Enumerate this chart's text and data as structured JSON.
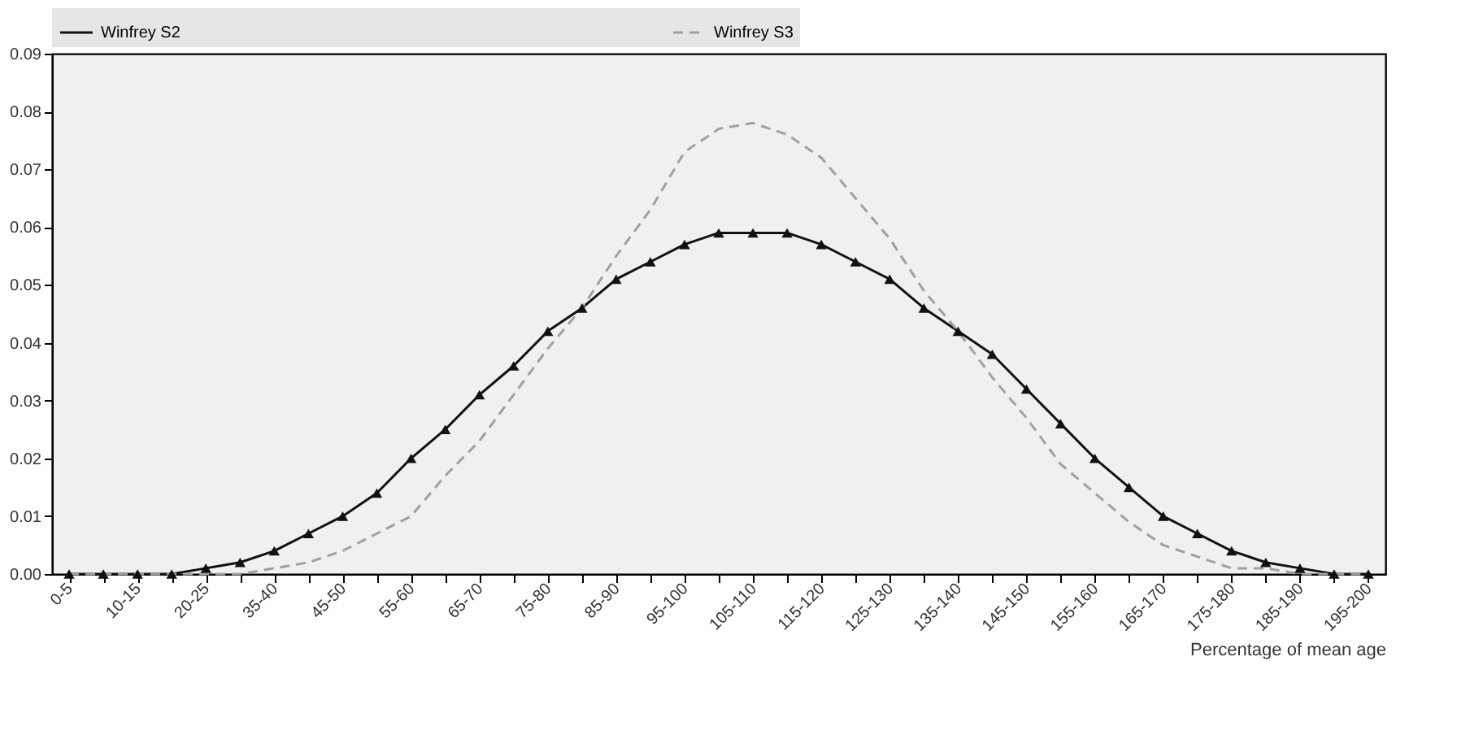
{
  "chart_data": {
    "type": "line",
    "xlabel": "Percentage of mean age",
    "categories": [
      "0-5",
      null,
      "10-15",
      null,
      "20-25",
      null,
      "35-40",
      null,
      "45-50",
      null,
      "55-60",
      null,
      "65-70",
      null,
      "75-80",
      null,
      "85-90",
      null,
      "95-100",
      null,
      "105-110",
      null,
      "115-120",
      null,
      "125-130",
      null,
      "135-140",
      null,
      "145-150",
      null,
      "155-160",
      null,
      "165-170",
      null,
      "175-180",
      null,
      "185-190",
      null,
      "195-200"
    ],
    "series": [
      {
        "name": "Winfrey S2",
        "color": "#111111",
        "marker": "triangle",
        "line_style": "solid",
        "values": [
          0,
          0,
          0,
          0,
          0.001,
          0.002,
          0.004,
          0.007,
          0.01,
          0.014,
          0.02,
          0.025,
          0.031,
          0.036,
          0.042,
          0.046,
          0.051,
          0.054,
          0.057,
          0.059,
          0.059,
          0.059,
          0.057,
          0.054,
          0.051,
          0.046,
          0.042,
          0.038,
          0.032,
          0.026,
          0.02,
          0.015,
          0.01,
          0.007,
          0.004,
          0.002,
          0.001,
          0,
          0
        ]
      },
      {
        "name": "Winfrey S3",
        "color": "#a0a0a0",
        "marker": "none",
        "line_style": "dashed",
        "values": [
          0,
          0,
          0,
          0,
          0,
          0,
          0.001,
          0.002,
          0.004,
          0.007,
          0.01,
          0.017,
          0.023,
          0.031,
          0.039,
          0.046,
          0.055,
          0.063,
          0.073,
          0.077,
          0.078,
          0.076,
          0.072,
          0.065,
          0.058,
          0.049,
          0.042,
          0.034,
          0.027,
          0.019,
          0.014,
          0.009,
          0.005,
          0.003,
          0.001,
          0.001,
          0,
          0,
          0
        ]
      }
    ],
    "ylim": [
      0,
      0.09
    ],
    "yticks": [
      {
        "value": 0,
        "label": "0.00"
      },
      {
        "value": 0.01,
        "label": "0.01"
      },
      {
        "value": 0.02,
        "label": "0.02"
      },
      {
        "value": 0.03,
        "label": "0.03"
      },
      {
        "value": 0.04,
        "label": "0.04"
      },
      {
        "value": 0.05,
        "label": "0.05"
      },
      {
        "value": 0.06,
        "label": "0.06"
      },
      {
        "value": 0.07,
        "label": "0.07"
      },
      {
        "value": 0.08,
        "label": "0.08"
      },
      {
        "value": 0.09,
        "label": "0.09"
      }
    ],
    "grid": false,
    "legend": "top"
  }
}
